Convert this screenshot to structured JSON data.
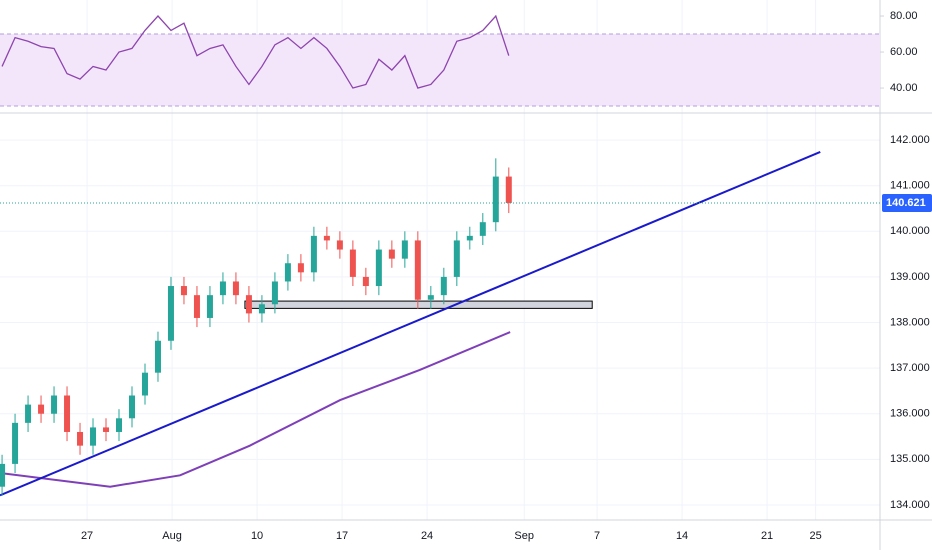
{
  "chart_data": [
    {
      "type": "candlestick",
      "x": [
        20,
        21.07,
        22.14,
        23.21,
        24.28,
        25.35,
        26.42,
        27.49,
        28.56,
        29.63,
        30.7,
        31.77,
        32.84,
        33.91,
        34.98,
        36.05,
        37.12,
        38.19,
        39.26,
        40.33,
        41.4,
        42.47,
        43.54,
        44.61,
        45.68,
        46.75,
        47.82,
        48.89,
        49.96,
        51.03,
        52.1,
        53.17,
        54.24,
        55.31,
        56.38,
        57.45,
        58.52,
        59.59,
        60.66,
        61.73
      ],
      "open": [
        134.4,
        134.9,
        135.8,
        136.2,
        136.0,
        136.4,
        135.6,
        135.3,
        135.7,
        135.6,
        135.9,
        136.4,
        136.9,
        137.6,
        138.8,
        138.6,
        138.1,
        138.6,
        138.9,
        138.6,
        138.2,
        138.4,
        138.9,
        139.3,
        139.1,
        139.9,
        139.8,
        139.6,
        139.0,
        138.8,
        139.6,
        139.4,
        139.8,
        138.5,
        138.6,
        139.0,
        139.8,
        139.9,
        140.2,
        141.2
      ],
      "high": [
        135.1,
        136.0,
        136.4,
        136.4,
        136.6,
        136.6,
        135.8,
        135.9,
        135.9,
        136.1,
        136.6,
        137.1,
        137.8,
        139.0,
        139.0,
        138.8,
        138.8,
        139.1,
        139.1,
        138.8,
        138.6,
        139.1,
        139.5,
        139.5,
        140.1,
        140.1,
        140.0,
        139.8,
        139.2,
        139.8,
        139.8,
        140.0,
        140.0,
        138.8,
        139.2,
        140.0,
        140.1,
        140.4,
        141.6,
        141.4
      ],
      "low": [
        134.2,
        134.7,
        135.6,
        135.8,
        135.8,
        135.4,
        135.1,
        135.1,
        135.4,
        135.4,
        135.7,
        136.2,
        136.7,
        137.4,
        138.4,
        137.9,
        137.9,
        138.4,
        138.4,
        138.0,
        138.0,
        138.2,
        138.7,
        138.9,
        138.9,
        139.6,
        139.4,
        138.8,
        138.6,
        138.6,
        139.2,
        139.2,
        138.3,
        138.3,
        138.4,
        138.8,
        139.6,
        139.7,
        140.0,
        140.4
      ],
      "close": [
        134.9,
        135.8,
        136.2,
        136.0,
        136.4,
        135.6,
        135.3,
        135.7,
        135.6,
        135.9,
        136.4,
        136.9,
        137.6,
        138.8,
        138.6,
        138.1,
        138.6,
        138.9,
        138.6,
        138.2,
        138.4,
        138.9,
        139.3,
        139.1,
        139.9,
        139.8,
        139.6,
        139.0,
        138.8,
        139.6,
        139.4,
        139.8,
        138.5,
        138.6,
        139.0,
        139.8,
        139.9,
        140.2,
        141.2,
        140.621
      ],
      "up_color": "#26a69a",
      "down_color": "#ef5350",
      "xlim": [
        19.83,
        92.3
      ],
      "xticks": [
        {
          "value": 27,
          "label": "27"
        },
        {
          "value": 34,
          "label": "Aug"
        },
        {
          "value": 41,
          "label": "10"
        },
        {
          "value": 48,
          "label": "17"
        },
        {
          "value": 55,
          "label": "24"
        },
        {
          "value": 63,
          "label": "Sep"
        },
        {
          "value": 69,
          "label": "7"
        },
        {
          "value": 76,
          "label": "14"
        },
        {
          "value": 83,
          "label": "21"
        },
        {
          "value": 87,
          "label": "25"
        }
      ],
      "ylim": [
        133.67,
        142.55
      ],
      "yticks": [
        {
          "value": 134,
          "label": "134.000"
        },
        {
          "value": 135,
          "label": "135.000"
        },
        {
          "value": 136,
          "label": "136.000"
        },
        {
          "value": 137,
          "label": "137.000"
        },
        {
          "value": 138,
          "label": "138.000"
        },
        {
          "value": 139,
          "label": "139.000"
        },
        {
          "value": 140,
          "label": "140.000"
        },
        {
          "value": 141,
          "label": "141.000"
        },
        {
          "value": 142,
          "label": "142.000"
        }
      ],
      "last_price": 140.621,
      "moving_average": {
        "color": "#7e3fb8",
        "x": [
          19.83,
          28.9,
          34.66,
          40.4,
          47.84,
          54.4,
          61.84
        ],
        "values": [
          134.7,
          134.4,
          134.65,
          135.3,
          136.3,
          136.96,
          137.79
        ]
      },
      "trendline": {
        "color": "#1a1acc",
        "x": [
          19.83,
          87.38
        ],
        "y": [
          134.21,
          141.74
        ]
      },
      "zone": {
        "x": [
          40.0,
          68.6
        ],
        "y": [
          138.31,
          138.47
        ]
      }
    },
    {
      "type": "line",
      "color": "#8e44ad",
      "values": [
        52,
        68,
        66,
        63,
        62,
        48,
        45,
        52,
        50,
        60,
        62,
        72,
        80,
        72,
        76,
        58,
        62,
        64,
        52,
        42,
        52,
        64,
        68,
        62,
        68,
        62,
        52,
        40,
        42,
        56,
        50,
        58,
        40,
        42,
        50,
        66,
        68,
        72,
        80,
        58
      ],
      "band": [
        30,
        70
      ],
      "band_color": "#f3e6fb",
      "ylim": [
        26.7,
        88.9
      ],
      "yticks": [
        {
          "value": 40,
          "label": "40.00"
        },
        {
          "value": 60,
          "label": "60.00"
        },
        {
          "value": 80,
          "label": "80.00"
        }
      ]
    }
  ]
}
